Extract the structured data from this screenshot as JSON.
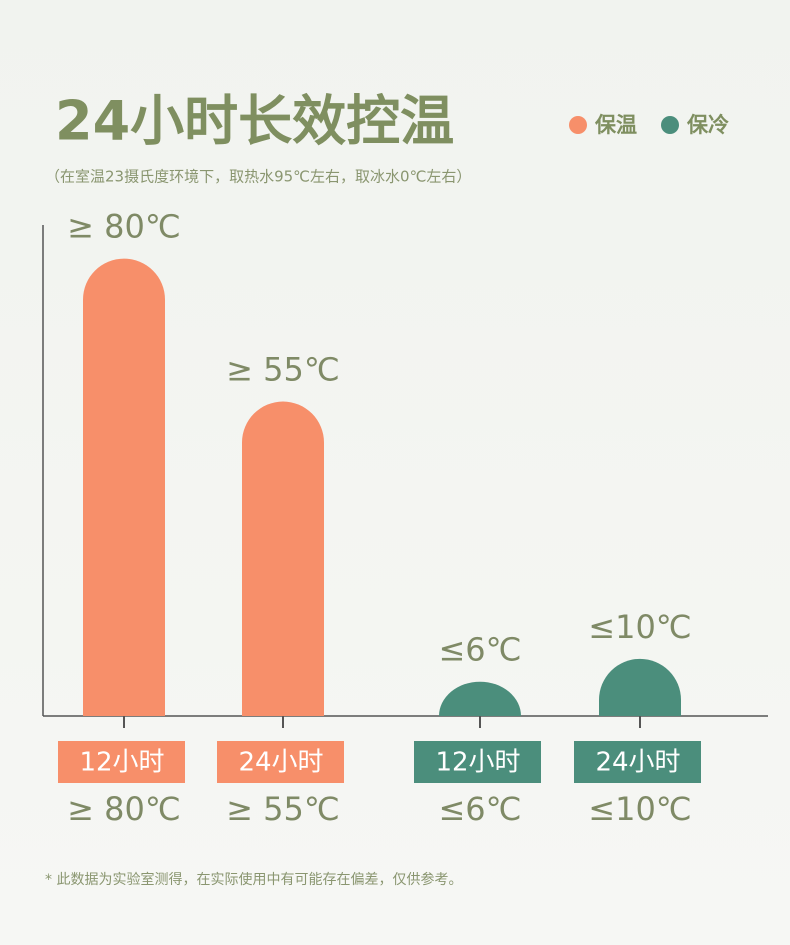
{
  "chart_data": {
    "type": "bar",
    "title": "24小时长效控温",
    "subtitle": "（在室温23摄氏度环境下，取热水95℃左右，取冰水0℃左右）",
    "note": "* 此数据为实验室测得，在实际使用中有可能存在偏差，仅供参考。",
    "categories": [
      "12小时",
      "24小时"
    ],
    "series": [
      {
        "name": "保温",
        "color": "#f78f6a",
        "values": [
          80,
          55
        ],
        "value_labels": [
          "≥ 80℃",
          "≥ 55℃"
        ]
      },
      {
        "name": "保冷",
        "color": "#4b8e7c",
        "values": [
          6,
          10
        ],
        "value_labels": [
          "≤6℃",
          "≤10℃"
        ]
      }
    ],
    "ylim": [
      0,
      85
    ],
    "legend": "top-right"
  }
}
